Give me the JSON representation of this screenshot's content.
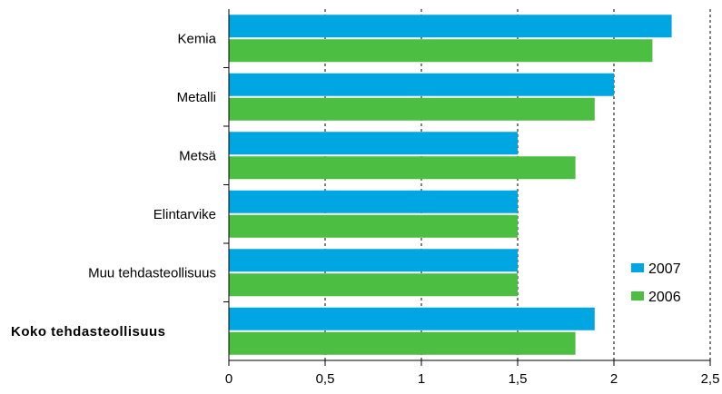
{
  "chart_data": {
    "type": "bar",
    "orientation": "horizontal",
    "categories": [
      "Kemia",
      "Metalli",
      "Metsä",
      "Elintarvike",
      "Muu tehdasteollisuus",
      "Koko tehdasteollisuus"
    ],
    "bold_categories": [
      "Koko tehdasteollisuus"
    ],
    "series": [
      {
        "name": "2007",
        "color": "#00a6e2",
        "values": [
          2.3,
          2.0,
          1.5,
          1.5,
          1.5,
          1.9
        ]
      },
      {
        "name": "2006",
        "color": "#4cbe41",
        "values": [
          2.2,
          1.9,
          1.8,
          1.5,
          1.5,
          1.8
        ]
      }
    ],
    "xlim": [
      0,
      2.5
    ],
    "xticks": [
      0,
      0.5,
      1,
      1.5,
      2,
      2.5
    ],
    "xtick_labels": [
      "0",
      "0,5",
      "1",
      "1,5",
      "2",
      "2,5"
    ],
    "grid": "vertical-dashed",
    "legend_position": "right",
    "title": "",
    "xlabel": "",
    "ylabel": ""
  }
}
